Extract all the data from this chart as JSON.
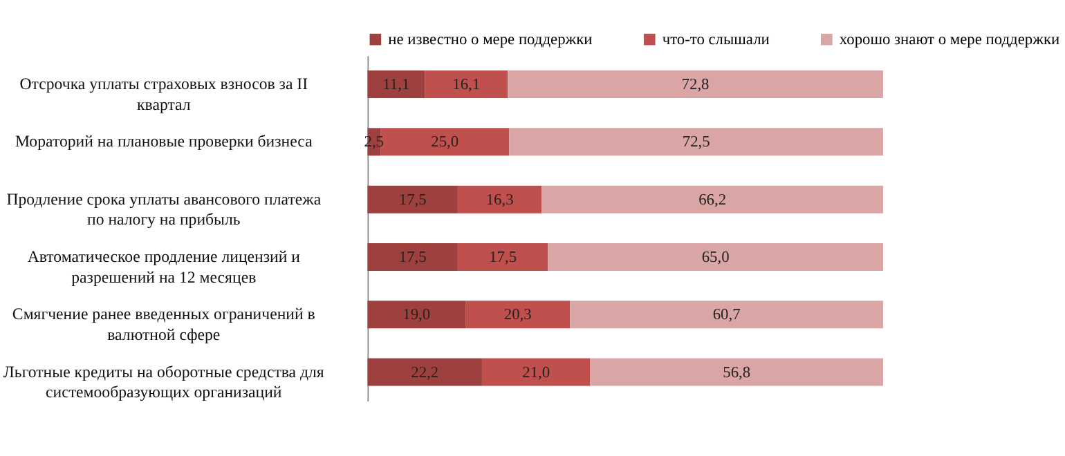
{
  "chart_data": {
    "type": "bar",
    "orientation": "horizontal",
    "stacked": true,
    "legend": "top",
    "grid": false,
    "categories": [
      "Отсрочка уплаты страховых взносов за II квартал",
      "Мораторий на плановые проверки бизнеса",
      "Продление срока уплаты авансового платежа по налогу на прибыль",
      "Автоматическое продление лицензий и разрешений на 12 месяцев",
      "Смягчение ранее введенных ограничений в валютной сфере",
      "Льготные кредиты на оборотные средства для системообразующих организаций"
    ],
    "series": [
      {
        "name": "не известно о мере поддержки",
        "color": "#9e413e",
        "values": [
          11.1,
          2.5,
          17.5,
          17.5,
          19.0,
          22.2
        ],
        "value_labels": [
          "11,1",
          "2,5",
          "17,5",
          "17,5",
          "19,0",
          "22,2"
        ]
      },
      {
        "name": "что-то слышали",
        "color": "#c0504d",
        "values": [
          16.1,
          25.0,
          16.3,
          17.5,
          20.3,
          21.0
        ],
        "value_labels": [
          "16,1",
          "25,0",
          "16,3",
          "17,5",
          "20,3",
          "21,0"
        ]
      },
      {
        "name": "хорошо знают о мере поддержки",
        "color": "#d9a6a5",
        "values": [
          72.8,
          72.5,
          66.2,
          65.0,
          60.7,
          56.8
        ],
        "value_labels": [
          "72,8",
          "72,5",
          "66,2",
          "65,0",
          "60,7",
          "56,8"
        ]
      }
    ]
  }
}
